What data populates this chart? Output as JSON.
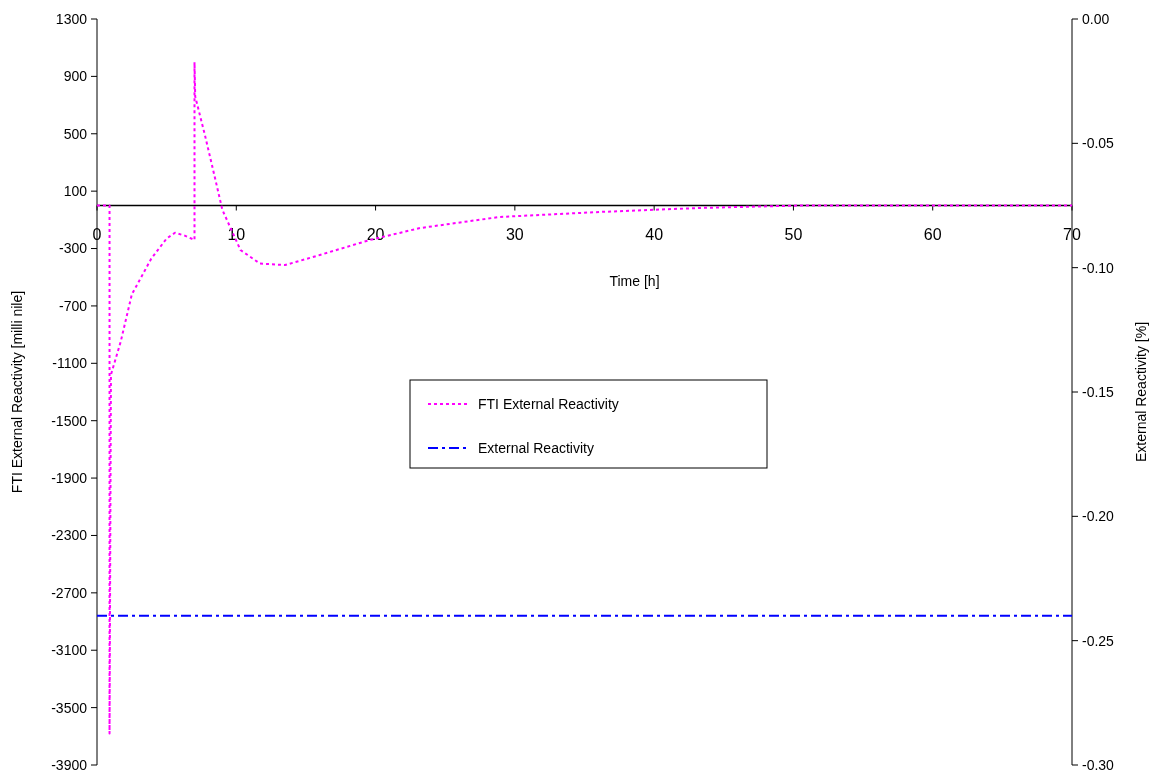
{
  "chart_data": {
    "type": "line",
    "xlabel": "Time [h]",
    "ylabel": "FTI External Reactivity [milli nile]",
    "y2label": "External Reactivity [%]",
    "xlim": [
      0,
      70
    ],
    "xticks": [
      0,
      10,
      20,
      30,
      40,
      50,
      60,
      70
    ],
    "ylim": [
      -3900,
      1300
    ],
    "yticks": [
      1300,
      900,
      500,
      100,
      -300,
      -700,
      -1100,
      -1500,
      -1900,
      -2300,
      -2700,
      -3100,
      -3500,
      -3900
    ],
    "y2lim": [
      -0.3,
      0
    ],
    "y2ticks": [
      {
        "value": 0,
        "label": "0.00"
      },
      {
        "value": -0.05,
        "label": "-0.05"
      },
      {
        "value": -0.1,
        "label": "-0.10"
      },
      {
        "value": -0.15,
        "label": "-0.15"
      },
      {
        "value": -0.2,
        "label": "-0.20"
      },
      {
        "value": -0.25,
        "label": "-0.25"
      },
      {
        "value": -0.3,
        "label": "-0.30"
      }
    ],
    "legend": "center",
    "grid": false,
    "marker": "none",
    "series": [
      {
        "name": "FTI External Reactivity",
        "color": "#ff00ff",
        "line_style": "dotted",
        "x": [
          0,
          0.9,
          0.9,
          1.0,
          1.7,
          2.5,
          3.9,
          5.0,
          5.6,
          6.3,
          7.0,
          7.0,
          7.05,
          7.75,
          8.5,
          9.0,
          10.3,
          11.7,
          13.5,
          16,
          19.6,
          23.2,
          28.9,
          36.1,
          43.3,
          50.5,
          60,
          70
        ],
        "values": [
          0,
          0,
          -3680,
          -1180,
          -950,
          -620,
          -370,
          -230,
          -190,
          -210,
          -240,
          1000,
          760,
          490,
          180,
          -30,
          -310,
          -405,
          -415,
          -345,
          -240,
          -157,
          -80,
          -45,
          -17,
          0,
          0,
          0
        ]
      },
      {
        "name": "External Reactivity",
        "color": "#0000ff",
        "line_style": "dashdot",
        "axis": "y2",
        "x": [
          0,
          70
        ],
        "values": [
          -0.24,
          -0.24
        ]
      }
    ]
  }
}
